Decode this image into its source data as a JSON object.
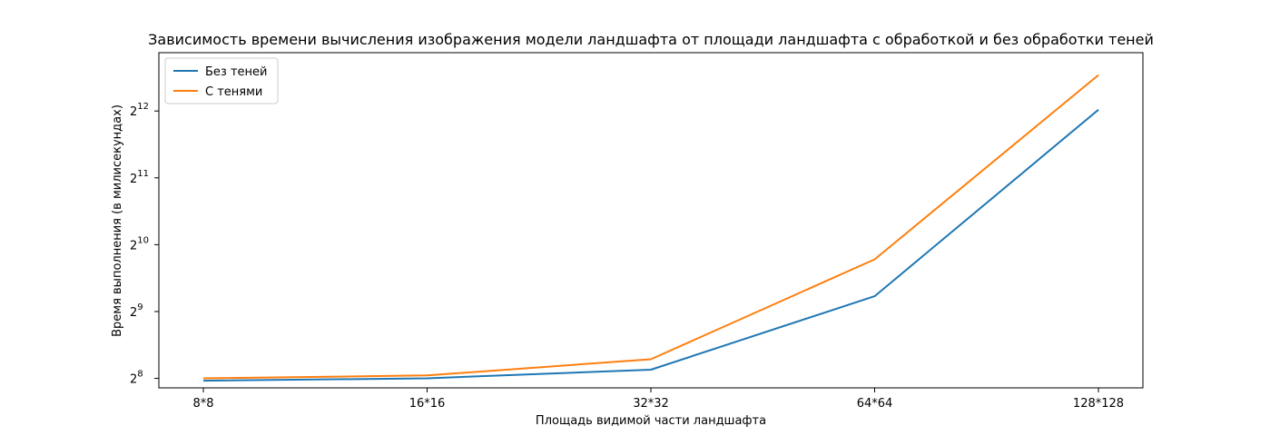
{
  "chart_data": {
    "type": "line",
    "title": "Зависимость времени вычисления изображения модели ландшафта от площади ландшафта с обработкой и без обработки теней",
    "xlabel": "Площадь видимой части ландшафта",
    "ylabel": "Время выполнения (в милисекундах)",
    "categories": [
      "8*8",
      "16*16",
      "32*32",
      "64*64",
      "128*128"
    ],
    "y_scale": "log2",
    "ylim": [
      232,
      7500
    ],
    "y_ticks": [
      {
        "value": 256,
        "base": "2",
        "exp": "8"
      },
      {
        "value": 512,
        "base": "2",
        "exp": "9"
      },
      {
        "value": 1024,
        "base": "2",
        "exp": "10"
      },
      {
        "value": 2048,
        "base": "2",
        "exp": "11"
      },
      {
        "value": 4096,
        "base": "2",
        "exp": "12"
      }
    ],
    "series": [
      {
        "name": "Без теней",
        "color": "#1f77b4",
        "values": [
          250,
          256,
          280,
          600,
          4150
        ]
      },
      {
        "name": "С тенями",
        "color": "#ff7f0e",
        "values": [
          256,
          264,
          312,
          880,
          5950
        ]
      }
    ],
    "legend_position": "top-left",
    "grid": false
  }
}
